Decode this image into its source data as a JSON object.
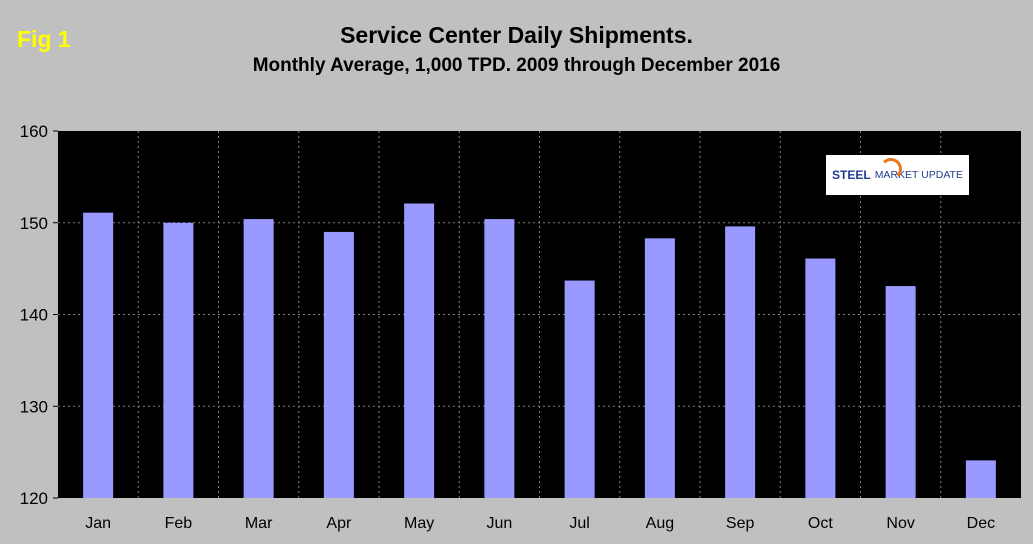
{
  "figure": {
    "fig_label": "Fig 1",
    "logo_text": "STEEL MARKET UPDATE",
    "logo_steel": "STEEL",
    "logo_rest": "MARKET UPDATE"
  },
  "colors": {
    "background": "#c0c0c0",
    "plot_area": "#000000",
    "bar": "#9999ff",
    "fig_label": "#ffff00",
    "gridline": "#808080"
  },
  "chart_data": {
    "type": "bar",
    "title": "Service Center Daily Shipments.",
    "subtitle": "Monthly Average, 1,000 TPD.  2009 through December 2016",
    "categories": [
      "Jan",
      "Feb",
      "Mar",
      "Apr",
      "May",
      "Jun",
      "Jul",
      "Aug",
      "Sep",
      "Oct",
      "Nov",
      "Dec"
    ],
    "values": [
      151.1,
      150.0,
      150.4,
      149.0,
      152.1,
      150.4,
      143.7,
      148.3,
      149.6,
      146.1,
      143.1,
      124.1
    ],
    "xlabel": "",
    "ylabel": "",
    "ylim": [
      120,
      160
    ],
    "yticks": [
      120,
      130,
      140,
      150,
      160
    ],
    "ytick_labels": [
      "120",
      "130",
      "140",
      "150",
      "160"
    ],
    "grid": "dotted horizontal and vertical",
    "legend": "none"
  }
}
